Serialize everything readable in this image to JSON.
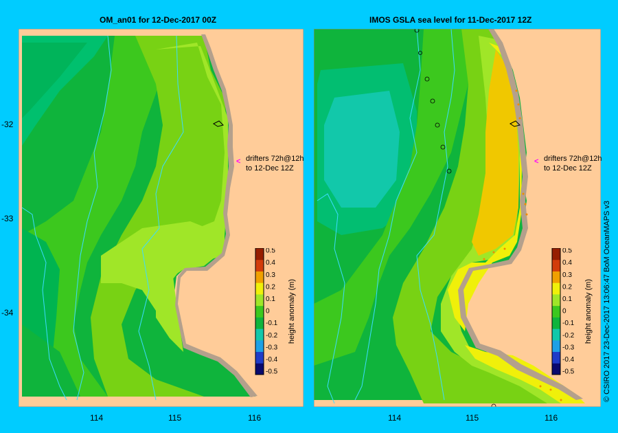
{
  "panels": [
    {
      "title": "OM_an01  for 12-Dec-2017 00Z"
    },
    {
      "title": "IMOS GSLA sea level  for 11-Dec-2017 12Z"
    }
  ],
  "drifter_note": [
    "drifters 72h@12h",
    "to 12-Dec 12Z"
  ],
  "yticks": [
    "-32",
    "-33",
    "-34"
  ],
  "xticks": [
    "114",
    "115",
    "116"
  ],
  "colorbar": {
    "label": "height anomaly (m)",
    "ticks": [
      "0.5",
      "0.4",
      "0.3",
      "0.2",
      "0.1",
      "0",
      "-0.1",
      "-0.2",
      "-0.3",
      "-0.4",
      "-0.5"
    ],
    "colors": [
      "#0a0a6e",
      "#1f3cc8",
      "#1ea0e6",
      "#12c8aa",
      "#0fb43c",
      "#3cc81e",
      "#a0e628",
      "#f0f00a",
      "#f0a000",
      "#d23c0a",
      "#961e00"
    ]
  },
  "credit": "© CSIRO 2017   23-Dec-2017 13:06:47 BoM OceanMAPS v3",
  "colors": {
    "background": "#00ccff",
    "land": "#ffcc99",
    "coast": "#b4a08c",
    "arrow": "#ff00ff"
  }
}
